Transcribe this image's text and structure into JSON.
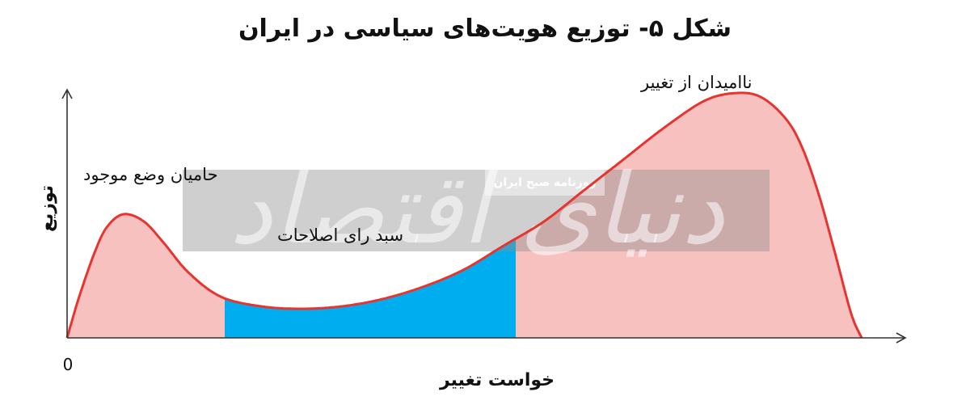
{
  "chart_data": {
    "type": "area",
    "title": "شکل ۵- توزیع هویت‌های سیاسی در ایران",
    "xlabel": "خواست تغییر",
    "ylabel": "توزیع",
    "origin_label": "0",
    "xlim": [
      0,
      100
    ],
    "ylim": [
      0,
      100
    ],
    "grid": false,
    "legend": "none",
    "curve": {
      "x": [
        0,
        1.5,
        3.5,
        5,
        7,
        9.5,
        12,
        15,
        19,
        24,
        29,
        34,
        39,
        44,
        49,
        54,
        59,
        64,
        69,
        74,
        79,
        83,
        86,
        89,
        91,
        93,
        95,
        97,
        98.3
      ],
      "y": [
        0,
        17,
        36,
        46,
        51,
        48,
        39,
        27,
        17,
        13,
        12,
        13,
        16,
        21,
        28,
        38,
        48,
        61,
        74,
        87,
        98,
        101,
        99,
        90,
        78,
        59,
        35,
        10,
        0
      ],
      "color": "#e8342f"
    },
    "segments": [
      {
        "name": "حامیان وضع موجود",
        "x_start": 0,
        "x_end": 19.5,
        "color": "#f7c1c0"
      },
      {
        "name": "سبد رای اصلاحات",
        "x_start": 19.5,
        "x_end": 55.5,
        "color": "#00aeef"
      },
      {
        "name": "ناامیدان از تغییر",
        "x_start": 55.5,
        "x_end": 98.3,
        "color": "#f7c1c0"
      }
    ],
    "annotations": [
      {
        "text": "حامیان وضع موجود",
        "x": 2,
        "y": 65
      },
      {
        "text": "سبد رای اصلاحات",
        "x": 26,
        "y": 40
      },
      {
        "text": "ناامیدان از تغییر",
        "x": 71,
        "y": 103
      }
    ]
  },
  "watermark": {
    "text": "روزنامه صبح ایران",
    "logo": "دنیای اقتصاد"
  }
}
